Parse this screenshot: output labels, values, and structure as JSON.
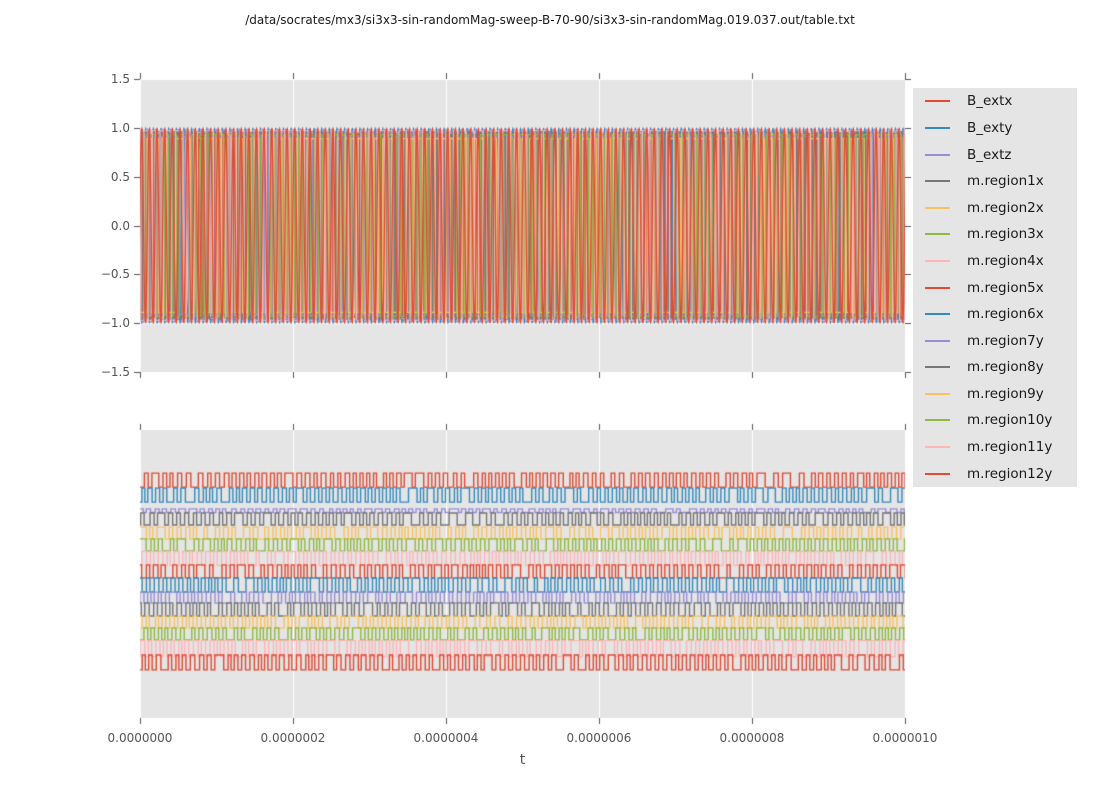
{
  "title": "/data/socrates/mx3/si3x3-sin-randomMag-sweep-B-70-90/si3x3-sin-randomMag.019.037.out/table.txt",
  "chart_data": {
    "type": "line",
    "x": {
      "label": "t",
      "min": 0,
      "max": 1e-06,
      "tick_labels": [
        "0.0000000",
        "0.0000002",
        "0.0000004",
        "0.0000006",
        "0.0000008",
        "0.0000010"
      ]
    },
    "wave_cycles": 100,
    "subplots": [
      {
        "name": "top",
        "ylim": [
          -1.5,
          1.5
        ],
        "ytick_labels": [
          "1.5",
          "1.0",
          "0.5",
          "0.0",
          "−0.5",
          "−1.0",
          "−1.5"
        ],
        "grid": "both",
        "series": [
          {
            "name": "B_extx",
            "color": "#E24A33",
            "kind": "sine",
            "amplitude": 1.0,
            "phase": 0.0
          },
          {
            "name": "B_exty",
            "color": "#348ABD",
            "kind": "sine",
            "amplitude": 1.0,
            "phase": 3.2
          },
          {
            "name": "B_extz",
            "color": "#988ED5",
            "kind": "sine",
            "amplitude": 0.99,
            "phase": 1.6
          },
          {
            "name": "m.region1x",
            "color": "#777777",
            "kind": "square",
            "amplitude": 0.93,
            "phase": 0.9
          },
          {
            "name": "m.region2x",
            "color": "#FBC15E",
            "kind": "square",
            "amplitude": 0.9,
            "phase": 2.3
          },
          {
            "name": "m.region3x",
            "color": "#8EBA42",
            "kind": "square",
            "amplitude": 0.92,
            "phase": 4.0
          },
          {
            "name": "m.region4x",
            "color": "#FFB5B8",
            "kind": "square",
            "amplitude": 0.95,
            "phase": 5.2
          },
          {
            "name": "m.region5x",
            "color": "#E24A33",
            "kind": "square",
            "amplitude": 0.94,
            "phase": 0.5
          },
          {
            "name": "m.region6x",
            "color": "#348ABD",
            "kind": "square",
            "amplitude": 0.96,
            "phase": 2.9
          },
          {
            "name": "m.region7y",
            "color": "#988ED5",
            "kind": "square",
            "amplitude": 0.91,
            "phase": 4.6
          },
          {
            "name": "m.region8y",
            "color": "#777777",
            "kind": "square",
            "amplitude": 0.95,
            "phase": 1.3
          },
          {
            "name": "m.region9y",
            "color": "#FBC15E",
            "kind": "square",
            "amplitude": 0.89,
            "phase": 3.6
          },
          {
            "name": "m.region10y",
            "color": "#8EBA42",
            "kind": "square",
            "amplitude": 0.93,
            "phase": 5.6
          },
          {
            "name": "m.region11y",
            "color": "#FFB5B8",
            "kind": "square",
            "amplitude": 0.97,
            "phase": 2.0
          },
          {
            "name": "m.region12y",
            "color": "#E24A33",
            "kind": "sine",
            "amplitude": 0.985,
            "phase": 0.25
          }
        ]
      },
      {
        "name": "bottom",
        "ylim": null,
        "ytick_labels": [],
        "grid": "vertical",
        "series": [
          {
            "name": "B_extx",
            "color": "#E24A33",
            "kind": "square",
            "center": 0.174,
            "half": 0.0243,
            "phase": 0.0
          },
          {
            "name": "B_exty",
            "color": "#348ABD",
            "kind": "square",
            "center": 0.226,
            "half": 0.0243,
            "phase": 0.45
          },
          {
            "name": "B_extz",
            "color": "#988ED5",
            "kind": "square",
            "center": 0.28,
            "half": 0.0063,
            "phase": 0.2
          },
          {
            "name": "m.region1x",
            "color": "#777777",
            "kind": "square",
            "center": 0.309,
            "half": 0.0208,
            "phase": 0.7
          },
          {
            "name": "m.region2x",
            "color": "#FBC15E",
            "kind": "square",
            "center": 0.358,
            "half": 0.0208,
            "phase": 0.35
          },
          {
            "name": "m.region3x",
            "color": "#8EBA42",
            "kind": "square",
            "center": 0.399,
            "half": 0.0208,
            "phase": 0.85
          },
          {
            "name": "m.region4x",
            "color": "#FFB5B8",
            "kind": "square",
            "center": 0.446,
            "half": 0.0243,
            "phase": 0.15
          },
          {
            "name": "m.region5x",
            "color": "#E24A33",
            "kind": "square",
            "center": 0.491,
            "half": 0.0226,
            "phase": 0.55
          },
          {
            "name": "m.region6x",
            "color": "#348ABD",
            "kind": "square",
            "center": 0.538,
            "half": 0.0243,
            "phase": 0.05
          },
          {
            "name": "m.region7y",
            "color": "#988ED5",
            "kind": "square",
            "center": 0.582,
            "half": 0.0191,
            "phase": 0.6
          },
          {
            "name": "m.region8y",
            "color": "#777777",
            "kind": "square",
            "center": 0.623,
            "half": 0.0226,
            "phase": 0.3
          },
          {
            "name": "m.region9y",
            "color": "#FBC15E",
            "kind": "square",
            "center": 0.667,
            "half": 0.0208,
            "phase": 0.75
          },
          {
            "name": "m.region10y",
            "color": "#8EBA42",
            "kind": "square",
            "center": 0.708,
            "half": 0.0208,
            "phase": 0.5
          },
          {
            "name": "m.region11y",
            "color": "#FFB5B8",
            "kind": "square",
            "center": 0.759,
            "half": 0.0278,
            "phase": 0.25
          },
          {
            "name": "m.region12y",
            "color": "#E24A33",
            "kind": "square",
            "center": 0.807,
            "half": 0.026,
            "phase": 0.9
          }
        ]
      }
    ],
    "legend": {
      "position": "right",
      "items": [
        {
          "label": "B_extx",
          "color": "#E24A33"
        },
        {
          "label": "B_exty",
          "color": "#348ABD"
        },
        {
          "label": "B_extz",
          "color": "#988ED5"
        },
        {
          "label": "m.region1x",
          "color": "#777777"
        },
        {
          "label": "m.region2x",
          "color": "#FBC15E"
        },
        {
          "label": "m.region3x",
          "color": "#8EBA42"
        },
        {
          "label": "m.region4x",
          "color": "#FFB5B8"
        },
        {
          "label": "m.region5x",
          "color": "#E24A33"
        },
        {
          "label": "m.region6x",
          "color": "#348ABD"
        },
        {
          "label": "m.region7y",
          "color": "#988ED5"
        },
        {
          "label": "m.region8y",
          "color": "#777777"
        },
        {
          "label": "m.region9y",
          "color": "#FBC15E"
        },
        {
          "label": "m.region10y",
          "color": "#8EBA42"
        },
        {
          "label": "m.region11y",
          "color": "#FFB5B8"
        },
        {
          "label": "m.region12y",
          "color": "#E24A33"
        }
      ]
    },
    "style": {
      "fig_bg": "#ffffff",
      "axes_bg": "#e5e5e5",
      "grid_color": "#ffffff",
      "tick_color": "#555555",
      "text_color": "#1a1a1a"
    }
  }
}
